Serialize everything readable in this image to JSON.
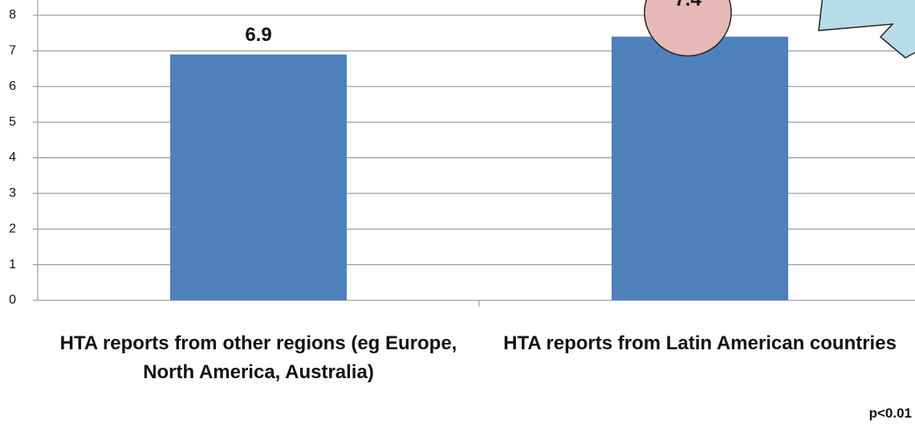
{
  "chart_data": {
    "type": "bar",
    "categories": [
      "HTA reports from other regions (eg Europe, North America, Australia)",
      "HTA reports from Latin American countries"
    ],
    "values": [
      6.9,
      7.4
    ],
    "color": "#4f81bd",
    "ylim": [
      0,
      8
    ],
    "yticks": [
      0,
      1,
      2,
      3,
      4,
      5,
      6,
      7,
      8
    ],
    "grid": true,
    "annotation": "p<0.01"
  }
}
